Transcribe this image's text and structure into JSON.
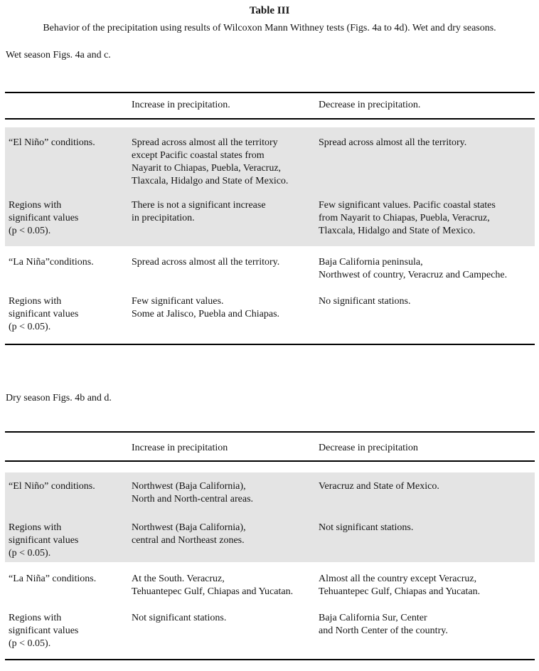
{
  "doc": {
    "title": "Table III",
    "caption": "Behavior of the precipitation using results of Wilcoxon Mann Withney tests (Figs. 4a to 4d). Wet and dry seasons."
  },
  "colors": {
    "shaded_row_bg": "#e4e4e4",
    "rule": "#000000",
    "text": "#141414"
  },
  "wet_section": {
    "label": "Wet season Figs. 4a and c.",
    "table": {
      "col_headers": {
        "increase": "Increase in precipitation.",
        "decrease": "Decrease in precipitation."
      },
      "rows": [
        {
          "label": "“El Niño” conditions.",
          "increase": "Spread across almost all the territory\nexcept Pacific coastal states from\nNayarit to Chiapas, Puebla, Veracruz,\nTlaxcala, Hidalgo and State of Mexico.",
          "decrease": "Spread across almost all the territory."
        },
        {
          "label": "Regions with\nsignificant values\n(p < 0.05).",
          "increase": "There is not a significant increase\nin precipitation.",
          "decrease": "Few significant values. Pacific coastal states\nfrom Nayarit to Chiapas, Puebla, Veracruz,\nTlaxcala, Hidalgo and State of Mexico."
        },
        {
          "label": "“La Niña”conditions.",
          "increase": "Spread across almost all the territory.",
          "decrease": "Baja California peninsula,\nNorthwest of country, Veracruz and Campeche."
        },
        {
          "label": "Regions with\nsignificant values\n(p < 0.05).",
          "increase": "Few significant values.\nSome at Jalisco, Puebla and Chiapas.",
          "decrease": "No significant stations."
        }
      ]
    }
  },
  "dry_section": {
    "label": "Dry season Figs. 4b and d.",
    "table": {
      "col_headers": {
        "increase": "Increase in precipitation",
        "decrease": "Decrease in precipitation"
      },
      "rows": [
        {
          "label": "“El Niño” conditions.",
          "increase": "Northwest (Baja California),\nNorth and North-central areas.",
          "decrease": "Veracruz and State of Mexico."
        },
        {
          "label": "Regions with\nsignificant values\n(p < 0.05).",
          "increase": "Northwest (Baja California),\ncentral and Northeast zones.",
          "decrease": "Not significant stations."
        },
        {
          "label": "“La Niña” conditions.",
          "increase": "At the South. Veracruz,\nTehuantepec Gulf, Chiapas and Yucatan.",
          "decrease": "Almost all the country except Veracruz,\nTehuantepec Gulf, Chiapas and Yucatan."
        },
        {
          "label": "Regions with\nsignificant values\n(p < 0.05).",
          "increase": "Not significant stations.",
          "decrease": "Baja California Sur, Center\nand North Center of the country."
        }
      ]
    }
  }
}
